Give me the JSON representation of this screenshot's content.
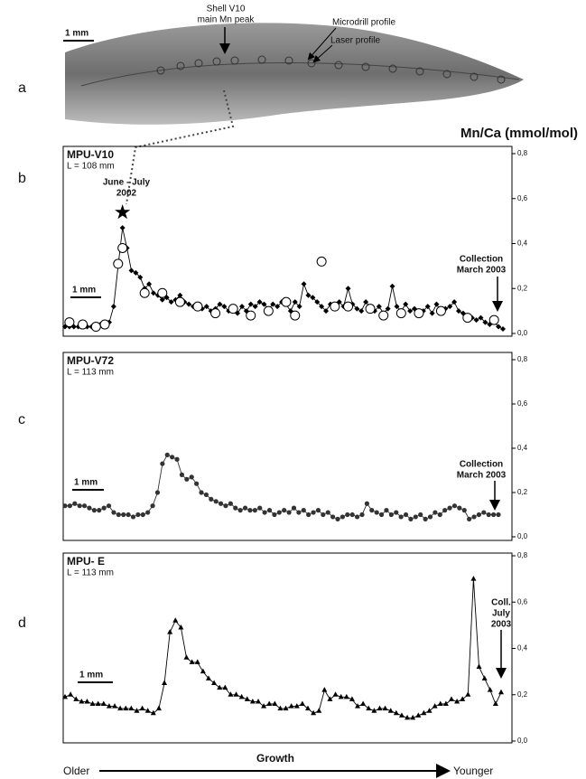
{
  "photo": {
    "label": "a",
    "scale_bar": "1 mm",
    "peak_label": [
      "Shell V10",
      "main Mn peak"
    ],
    "microdrill_label": "Microdrill profile",
    "laser_label": "Laser profile"
  },
  "y_axis_label": "Mn/Ca (mmol/mol)",
  "growth_axis": {
    "start": "Older",
    "label": "Growth",
    "end": "Younger"
  },
  "chart_data": [
    {
      "type": "line",
      "panel_label": "b",
      "title": "MPU-V10",
      "subtitle": "L = 108 mm",
      "scale_bar": "1 mm",
      "annotations": [
        [
          "June - July",
          "2002"
        ],
        [
          "Collection",
          "March 2003"
        ]
      ],
      "ylim": [
        0,
        0.8
      ],
      "yticks": [
        {
          "value": 0,
          "label": "0,0"
        },
        {
          "value": 0.2,
          "label": "0,2"
        },
        {
          "value": 0.4,
          "label": "0,4"
        },
        {
          "value": 0.6,
          "label": "0,6"
        },
        {
          "value": 0.8,
          "label": "0,8"
        }
      ],
      "series": [
        {
          "color": "#000000",
          "marker": "diamond",
          "line": true,
          "values": [
            0.03,
            0.03,
            0.03,
            0.03,
            0.04,
            0.03,
            0.03,
            0.04,
            0.04,
            0.03,
            0.05,
            0.12,
            0.3,
            0.47,
            0.38,
            0.28,
            0.27,
            0.25,
            0.2,
            0.22,
            0.18,
            0.17,
            0.15,
            0.16,
            0.14,
            0.15,
            0.17,
            0.14,
            0.13,
            0.12,
            0.13,
            0.11,
            0.12,
            0.1,
            0.11,
            0.13,
            0.12,
            0.1,
            0.11,
            0.09,
            0.12,
            0.1,
            0.13,
            0.12,
            0.14,
            0.13,
            0.11,
            0.13,
            0.12,
            0.14,
            0.13,
            0.1,
            0.14,
            0.12,
            0.22,
            0.17,
            0.16,
            0.14,
            0.12,
            0.1,
            0.13,
            0.11,
            0.14,
            0.12,
            0.2,
            0.13,
            0.11,
            0.1,
            0.14,
            0.12,
            0.1,
            0.12,
            0.09,
            0.11,
            0.21,
            0.12,
            0.1,
            0.13,
            0.1,
            0.11,
            0.09,
            0.1,
            0.12,
            0.09,
            0.13,
            0.1,
            0.11,
            0.12,
            0.14,
            0.1,
            0.09,
            0.08,
            0.07,
            0.06,
            0.07,
            0.05,
            0.04,
            0.05,
            0.03,
            0.02
          ]
        },
        {
          "color": "#000000",
          "marker": "circle-open",
          "line": false,
          "values": [
            null,
            0.05,
            null,
            null,
            0.04,
            null,
            null,
            0.03,
            null,
            0.04,
            null,
            null,
            0.31,
            0.38,
            null,
            null,
            null,
            null,
            0.18,
            null,
            null,
            null,
            0.18,
            null,
            null,
            null,
            0.14,
            null,
            null,
            null,
            0.12,
            null,
            null,
            null,
            0.09,
            null,
            null,
            null,
            0.11,
            null,
            null,
            null,
            0.08,
            null,
            null,
            null,
            0.1,
            null,
            null,
            null,
            0.14,
            null,
            0.08,
            null,
            null,
            null,
            null,
            null,
            0.32,
            null,
            null,
            0.12,
            null,
            null,
            0.12,
            null,
            null,
            null,
            null,
            0.11,
            null,
            null,
            0.08,
            null,
            null,
            null,
            0.09,
            null,
            null,
            null,
            0.09,
            null,
            null,
            null,
            null,
            0.1,
            null,
            null,
            null,
            null,
            null,
            0.07,
            null,
            null,
            null,
            null,
            null,
            0.06,
            null,
            null
          ]
        }
      ]
    },
    {
      "type": "line",
      "panel_label": "c",
      "title": "MPU-V72",
      "subtitle": "L = 113 mm",
      "scale_bar": "1 mm",
      "annotations": [
        [
          "Collection",
          "March 2003"
        ]
      ],
      "ylim": [
        0,
        0.8
      ],
      "yticks": [
        {
          "value": 0,
          "label": "0,0"
        },
        {
          "value": 0.2,
          "label": "0,2"
        },
        {
          "value": 0.4,
          "label": "0,4"
        },
        {
          "value": 0.6,
          "label": "0,6"
        },
        {
          "value": 0.8,
          "label": "0,8"
        }
      ],
      "series": [
        {
          "color": "#333333",
          "marker": "circle",
          "line": true,
          "values": [
            0.14,
            0.14,
            0.15,
            0.14,
            0.14,
            0.13,
            0.12,
            0.12,
            0.13,
            0.14,
            0.11,
            0.1,
            0.1,
            0.1,
            0.09,
            0.1,
            0.1,
            0.11,
            0.14,
            0.2,
            0.33,
            0.37,
            0.36,
            0.35,
            0.28,
            0.26,
            0.27,
            0.24,
            0.2,
            0.19,
            0.17,
            0.16,
            0.15,
            0.14,
            0.15,
            0.13,
            0.12,
            0.13,
            0.12,
            0.12,
            0.13,
            0.11,
            0.12,
            0.1,
            0.11,
            0.12,
            0.11,
            0.13,
            0.11,
            0.12,
            0.1,
            0.11,
            0.12,
            0.1,
            0.11,
            0.09,
            0.08,
            0.09,
            0.1,
            0.1,
            0.09,
            0.1,
            0.15,
            0.12,
            0.11,
            0.1,
            0.12,
            0.1,
            0.11,
            0.09,
            0.1,
            0.08,
            0.09,
            0.1,
            0.08,
            0.09,
            0.11,
            0.1,
            0.12,
            0.13,
            0.14,
            0.13,
            0.12,
            0.08,
            0.09,
            0.1,
            0.11,
            0.1,
            0.1,
            0.1
          ]
        }
      ]
    },
    {
      "type": "line",
      "panel_label": "d",
      "title": "MPU- E",
      "subtitle": "L = 113 mm",
      "scale_bar": "1 mm",
      "annotations": [
        [
          "Coll.",
          "July",
          "2003"
        ]
      ],
      "ylim": [
        0,
        0.8
      ],
      "yticks": [
        {
          "value": 0,
          "label": "0,0"
        },
        {
          "value": 0.2,
          "label": "0,2"
        },
        {
          "value": 0.4,
          "label": "0,4"
        },
        {
          "value": 0.6,
          "label": "0,6"
        },
        {
          "value": 0.8,
          "label": "0,8"
        }
      ],
      "series": [
        {
          "color": "#000000",
          "marker": "triangle",
          "line": true,
          "values": [
            0.19,
            0.2,
            0.18,
            0.17,
            0.17,
            0.16,
            0.16,
            0.16,
            0.15,
            0.15,
            0.14,
            0.14,
            0.14,
            0.13,
            0.14,
            0.13,
            0.12,
            0.14,
            0.25,
            0.47,
            0.52,
            0.49,
            0.36,
            0.34,
            0.34,
            0.3,
            0.27,
            0.25,
            0.23,
            0.23,
            0.2,
            0.2,
            0.19,
            0.18,
            0.17,
            0.17,
            0.15,
            0.16,
            0.16,
            0.14,
            0.14,
            0.15,
            0.15,
            0.16,
            0.14,
            0.12,
            0.13,
            0.22,
            0.18,
            0.2,
            0.19,
            0.19,
            0.18,
            0.15,
            0.16,
            0.14,
            0.13,
            0.14,
            0.14,
            0.13,
            0.12,
            0.11,
            0.1,
            0.1,
            0.11,
            0.12,
            0.13,
            0.15,
            0.16,
            0.16,
            0.18,
            0.17,
            0.18,
            0.2,
            0.7,
            0.32,
            0.27,
            0.22,
            0.16,
            0.21
          ]
        }
      ]
    }
  ]
}
